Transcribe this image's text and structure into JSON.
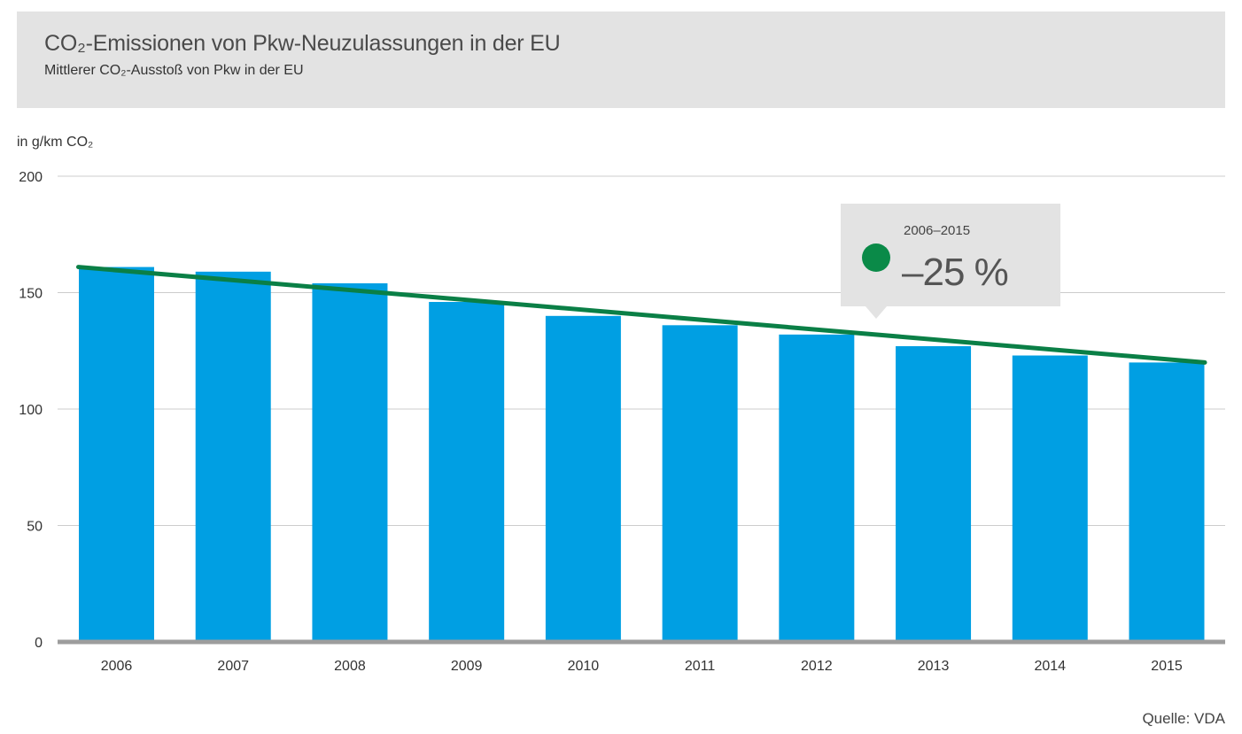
{
  "header": {
    "title": "CO₂-Emissionen von Pkw-Neuzulassungen in der EU",
    "subtitle": "Mittlerer CO₂-Ausstoß von Pkw in der EU"
  },
  "source": "Quelle: VDA",
  "chart_data": {
    "type": "bar",
    "title": "CO₂-Emissionen von Pkw-Neuzulassungen in der EU",
    "subtitle": "Mittlerer CO₂-Ausstoß von Pkw in der EU",
    "ylabel": "in g/km CO₂",
    "xlabel": "",
    "categories": [
      "2006",
      "2007",
      "2008",
      "2009",
      "2010",
      "2011",
      "2012",
      "2013",
      "2014",
      "2015"
    ],
    "values": [
      161,
      159,
      154,
      146,
      140,
      136,
      132,
      127,
      123,
      120
    ],
    "yticks": [
      0,
      50,
      100,
      150,
      200
    ],
    "ylim": [
      0,
      200
    ],
    "grid": true,
    "trend_line": {
      "from": 161,
      "to": 120,
      "color": "#0a7f46"
    },
    "annotation": {
      "period": "2006–2015",
      "value": "–25 %",
      "marker_color": "#0a8a48"
    },
    "colors": {
      "bar": "#009fe3",
      "trend": "#0a7f46",
      "axis": "#9d9d9d",
      "grid": "#cccccc",
      "header_bg": "#e3e3e3",
      "tooltip_bg": "#e3e3e3"
    }
  }
}
